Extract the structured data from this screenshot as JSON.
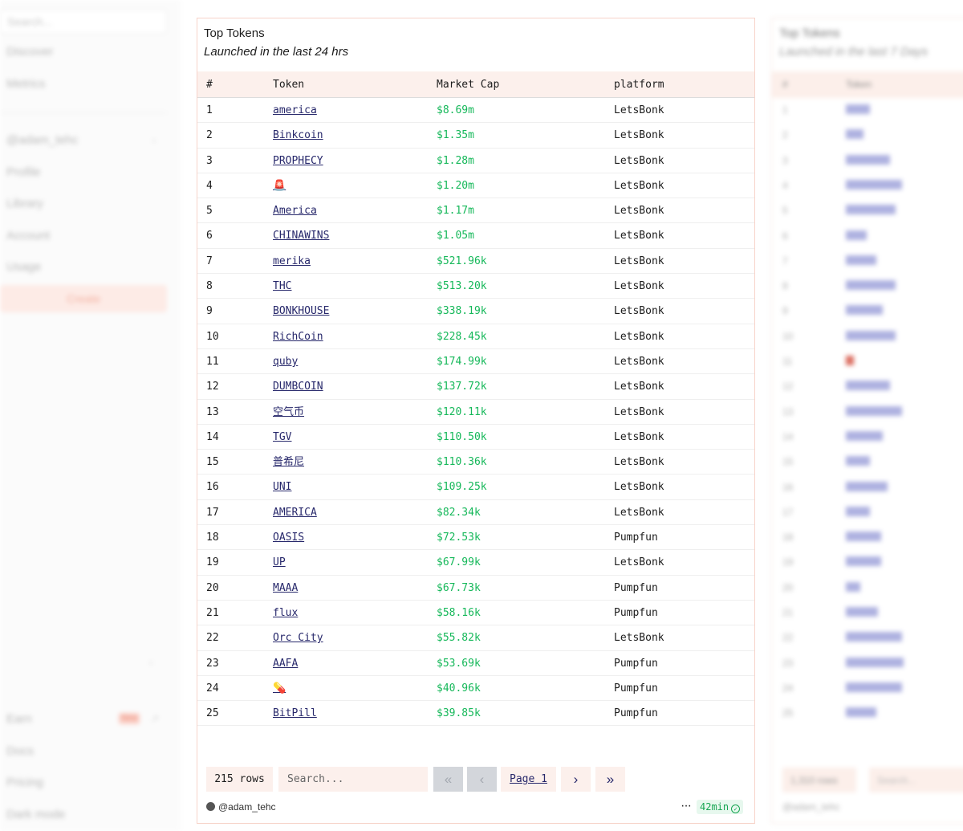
{
  "sidebar": {
    "search_placeholder": "Search...",
    "items": [
      "Discover",
      "Metrics",
      "@adam_tehc",
      "Profile",
      "Library",
      "Account",
      "Usage",
      "Create",
      "Earn",
      "Docs",
      "Pricing",
      "Dark mode"
    ],
    "earn_badge": "New"
  },
  "main_card": {
    "title": "Top Tokens",
    "subtitle": "Launched in the last 24 hrs",
    "columns": [
      "#",
      "Token",
      "Market Cap",
      "platform"
    ],
    "rows": [
      {
        "rank": "1",
        "token": "america",
        "market_cap": "$8.69m",
        "platform": "LetsBonk"
      },
      {
        "rank": "2",
        "token": "Binkcoin",
        "market_cap": "$1.35m",
        "platform": "LetsBonk"
      },
      {
        "rank": "3",
        "token": "PROPHECY",
        "market_cap": "$1.28m",
        "platform": "LetsBonk"
      },
      {
        "rank": "4",
        "token": "🚨",
        "market_cap": "$1.20m",
        "platform": "LetsBonk"
      },
      {
        "rank": "5",
        "token": "America",
        "market_cap": "$1.17m",
        "platform": "LetsBonk"
      },
      {
        "rank": "6",
        "token": "CHINAWINS",
        "market_cap": "$1.05m",
        "platform": "LetsBonk"
      },
      {
        "rank": "7",
        "token": "merika",
        "market_cap": "$521.96k",
        "platform": "LetsBonk"
      },
      {
        "rank": "8",
        "token": "THC",
        "market_cap": "$513.20k",
        "platform": "LetsBonk"
      },
      {
        "rank": "9",
        "token": "BONKHOUSE",
        "market_cap": "$338.19k",
        "platform": "LetsBonk"
      },
      {
        "rank": "10",
        "token": "RichCoin",
        "market_cap": "$228.45k",
        "platform": "LetsBonk"
      },
      {
        "rank": "11",
        "token": "quby",
        "market_cap": "$174.99k",
        "platform": "LetsBonk"
      },
      {
        "rank": "12",
        "token": "DUMBCOIN",
        "market_cap": "$137.72k",
        "platform": "LetsBonk"
      },
      {
        "rank": "13",
        "token": "空气币",
        "market_cap": "$120.11k",
        "platform": "LetsBonk"
      },
      {
        "rank": "14",
        "token": "TGV",
        "market_cap": "$110.50k",
        "platform": "LetsBonk"
      },
      {
        "rank": "15",
        "token": "普希尼",
        "market_cap": "$110.36k",
        "platform": "LetsBonk"
      },
      {
        "rank": "16",
        "token": "UNI",
        "market_cap": "$109.25k",
        "platform": "LetsBonk"
      },
      {
        "rank": "17",
        "token": "AMERICA",
        "market_cap": "$82.34k",
        "platform": "LetsBonk"
      },
      {
        "rank": "18",
        "token": "OASIS",
        "market_cap": "$72.53k",
        "platform": "Pumpfun"
      },
      {
        "rank": "19",
        "token": "UP",
        "market_cap": "$67.99k",
        "platform": "LetsBonk"
      },
      {
        "rank": "20",
        "token": "MAAA",
        "market_cap": "$67.73k",
        "platform": "Pumpfun"
      },
      {
        "rank": "21",
        "token": "flux",
        "market_cap": "$58.16k",
        "platform": "Pumpfun"
      },
      {
        "rank": "22",
        "token": "Orc City",
        "market_cap": "$55.82k",
        "platform": "LetsBonk"
      },
      {
        "rank": "23",
        "token": "AAFA",
        "market_cap": "$53.69k",
        "platform": "Pumpfun"
      },
      {
        "rank": "24",
        "token": "💊",
        "market_cap": "$40.96k",
        "platform": "Pumpfun"
      },
      {
        "rank": "25",
        "token": "BitPill",
        "market_cap": "$39.85k",
        "platform": "Pumpfun"
      }
    ],
    "pagination": {
      "row_count": "215 rows",
      "search_placeholder": "Search...",
      "page_label": "Page 1",
      "first_icon": "«",
      "prev_icon": "‹",
      "next_icon": "›",
      "last_icon": "»"
    },
    "footer": {
      "author": "@adam_tehc",
      "more_icon": "···",
      "age": "42min"
    }
  },
  "right_card": {
    "title": "Top Tokens",
    "subtitle": "Launched in the last 7 Days",
    "columns": [
      "#",
      "Token"
    ],
    "row_count": "1,310 rows",
    "search_placeholder": "Search...",
    "author": "@adam_tehc"
  },
  "colors": {
    "accent_bg": "#fcf0ec",
    "link": "#27286b",
    "market_cap": "#16b85a",
    "card_border": "#f7d3c9"
  }
}
